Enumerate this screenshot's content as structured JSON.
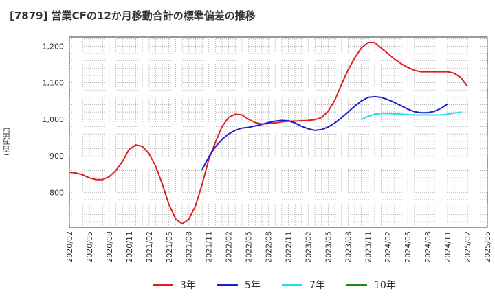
{
  "title": "[7879]  営業CFの12か月移動合計の標準偏差の推移",
  "ylabel": "(百万円)",
  "colors": {
    "3y": "#dd1f1f",
    "5y": "#1f1fcf",
    "7y": "#1fe0f0",
    "10y": "#1a8a1a"
  },
  "chart_data": {
    "type": "line",
    "title": "[7879]  営業CFの12か月移動合計の標準偏差の推移",
    "xlabel": "",
    "ylabel": "(百万円)",
    "x_ticks": [
      "2020/02",
      "2020/05",
      "2020/08",
      "2020/11",
      "2021/02",
      "2021/05",
      "2021/08",
      "2021/11",
      "2022/02",
      "2022/05",
      "2022/08",
      "2022/11",
      "2023/02",
      "2023/05",
      "2023/08",
      "2023/11",
      "2024/02",
      "2024/05",
      "2024/08",
      "2024/11",
      "2025/02",
      "2025/05"
    ],
    "y_ticks": [
      800,
      900,
      1000,
      1100,
      1200
    ],
    "ylim": [
      705,
      1225
    ],
    "xlim": [
      "2020/02",
      "2025/05"
    ],
    "grid": true,
    "legend_position": "bottom",
    "series": [
      {
        "name": "3年",
        "color": "#dd1f1f",
        "start": "2020/02",
        "values": [
          855,
          853,
          848,
          840,
          835,
          835,
          843,
          860,
          885,
          918,
          930,
          926,
          906,
          872,
          823,
          767,
          728,
          714,
          727,
          763,
          822,
          890,
          937,
          980,
          1005,
          1014,
          1012,
          1000,
          991,
          987,
          988,
          990,
          993,
          995,
          995,
          996,
          997,
          999,
          1005,
          1022,
          1052,
          1095,
          1135,
          1168,
          1195,
          1210,
          1210,
          1195,
          1180,
          1165,
          1152,
          1142,
          1134,
          1130,
          1130,
          1130,
          1130,
          1130,
          1126,
          1114,
          1090
        ]
      },
      {
        "name": "5年",
        "color": "#1f1fcf",
        "start": "2021/10",
        "values": [
          862,
          897,
          925,
          945,
          960,
          970,
          976,
          978,
          982,
          986,
          991,
          995,
          997,
          996,
          990,
          981,
          974,
          970,
          972,
          979,
          990,
          1004,
          1020,
          1036,
          1050,
          1060,
          1062,
          1060,
          1054,
          1046,
          1037,
          1028,
          1021,
          1018,
          1018,
          1022,
          1030,
          1042
        ]
      },
      {
        "name": "7年",
        "color": "#1fe0f0",
        "start": "2023/10",
        "values": [
          1000,
          1008,
          1014,
          1016,
          1016,
          1015,
          1014,
          1013,
          1012,
          1012,
          1012,
          1012,
          1012,
          1014,
          1017,
          1020
        ]
      },
      {
        "name": "10年",
        "color": "#1a8a1a",
        "start": "2020/02",
        "values": []
      }
    ]
  }
}
